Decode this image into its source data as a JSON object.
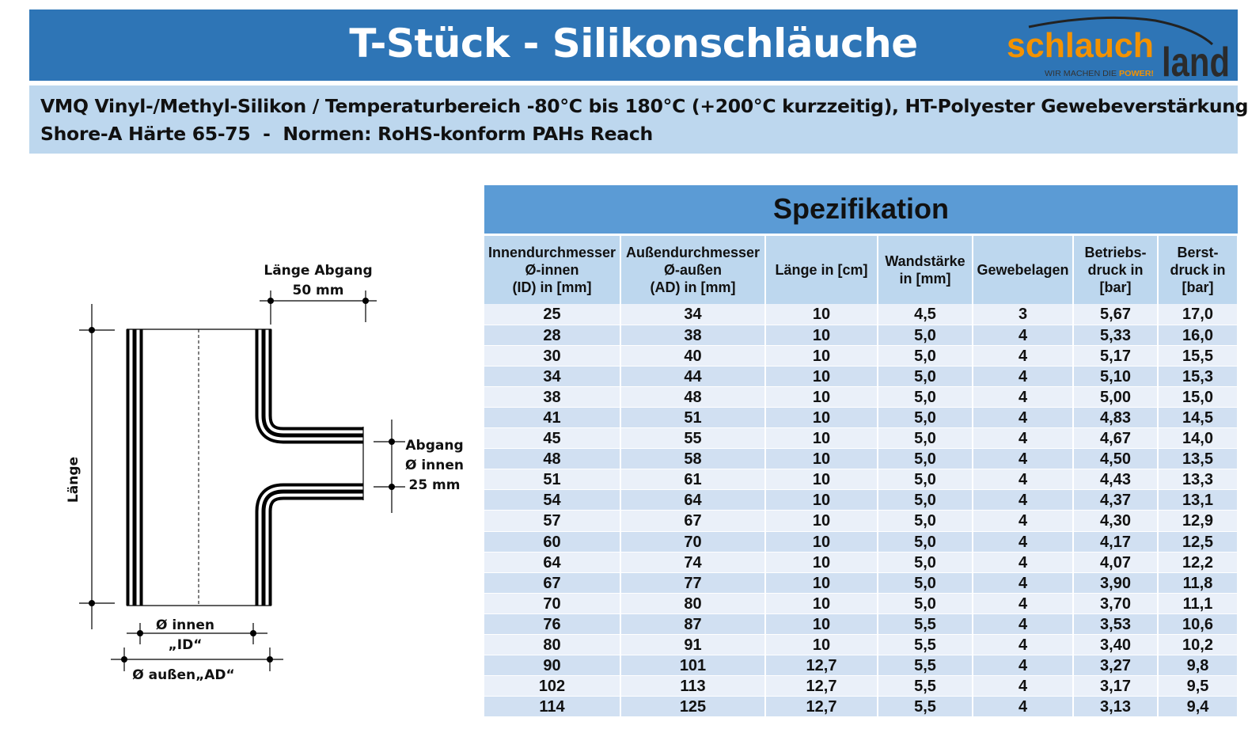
{
  "header": {
    "title": "T-Stück - Silikonschläuche",
    "logo": {
      "brand_orange": "schlauch",
      "brand_dark": "land",
      "slogan": "WIR MACHEN DIE ",
      "slogan_accent": "POWER!"
    },
    "bg_color": "#2E75B6"
  },
  "subheader": {
    "line1": "VMQ Vinyl-/Methyl-Silikon / Temperaturbereich -80°C bis 180°C (+200°C kurzzeitig), HT-Polyester Gewebeverstärkung",
    "line2": "Shore-A Härte 65-75  -  Normen: RoHS-konform PAHs Reach"
  },
  "diagram": {
    "laenge": "Länge",
    "laenge_abgang": "Länge Abgang",
    "laenge_abgang_value": "50 mm",
    "abgang": "Abgang",
    "abgang_innen": "Ø innen",
    "abgang_value": "25 mm",
    "id_label": "Ø innen",
    "id_sub": "„ID“",
    "ad_label": "Ø außen„AD“",
    "watermark": "schlauchland"
  },
  "table": {
    "title": "Spezifikation",
    "columns": [
      [
        "Innendurchmesser",
        "Ø-innen",
        "(ID) in [mm]"
      ],
      [
        "Außendurchmesser",
        "Ø-außen",
        "(AD) in [mm]"
      ],
      [
        "Länge in [cm]"
      ],
      [
        "Wandstärke",
        "in [mm]"
      ],
      [
        "Gewebelagen"
      ],
      [
        "Betriebs-",
        "druck in",
        "[bar]"
      ],
      [
        "Berst-",
        "druck in",
        "[bar]"
      ]
    ],
    "rows": [
      [
        "25",
        "34",
        "10",
        "4,5",
        "3",
        "5,67",
        "17,0"
      ],
      [
        "28",
        "38",
        "10",
        "5,0",
        "4",
        "5,33",
        "16,0"
      ],
      [
        "30",
        "40",
        "10",
        "5,0",
        "4",
        "5,17",
        "15,5"
      ],
      [
        "34",
        "44",
        "10",
        "5,0",
        "4",
        "5,10",
        "15,3"
      ],
      [
        "38",
        "48",
        "10",
        "5,0",
        "4",
        "5,00",
        "15,0"
      ],
      [
        "41",
        "51",
        "10",
        "5,0",
        "4",
        "4,83",
        "14,5"
      ],
      [
        "45",
        "55",
        "10",
        "5,0",
        "4",
        "4,67",
        "14,0"
      ],
      [
        "48",
        "58",
        "10",
        "5,0",
        "4",
        "4,50",
        "13,5"
      ],
      [
        "51",
        "61",
        "10",
        "5,0",
        "4",
        "4,43",
        "13,3"
      ],
      [
        "54",
        "64",
        "10",
        "5,0",
        "4",
        "4,37",
        "13,1"
      ],
      [
        "57",
        "67",
        "10",
        "5,0",
        "4",
        "4,30",
        "12,9"
      ],
      [
        "60",
        "70",
        "10",
        "5,0",
        "4",
        "4,17",
        "12,5"
      ],
      [
        "64",
        "74",
        "10",
        "5,0",
        "4",
        "4,07",
        "12,2"
      ],
      [
        "67",
        "77",
        "10",
        "5,0",
        "4",
        "3,90",
        "11,8"
      ],
      [
        "70",
        "80",
        "10",
        "5,0",
        "4",
        "3,70",
        "11,1"
      ],
      [
        "76",
        "87",
        "10",
        "5,5",
        "4",
        "3,53",
        "10,6"
      ],
      [
        "80",
        "91",
        "10",
        "5,5",
        "4",
        "3,40",
        "10,2"
      ],
      [
        "90",
        "101",
        "12,7",
        "5,5",
        "4",
        "3,27",
        "9,8"
      ],
      [
        "102",
        "113",
        "12,7",
        "5,5",
        "4",
        "3,17",
        "9,5"
      ],
      [
        "114",
        "125",
        "12,7",
        "5,5",
        "4",
        "3,13",
        "9,4"
      ]
    ]
  }
}
